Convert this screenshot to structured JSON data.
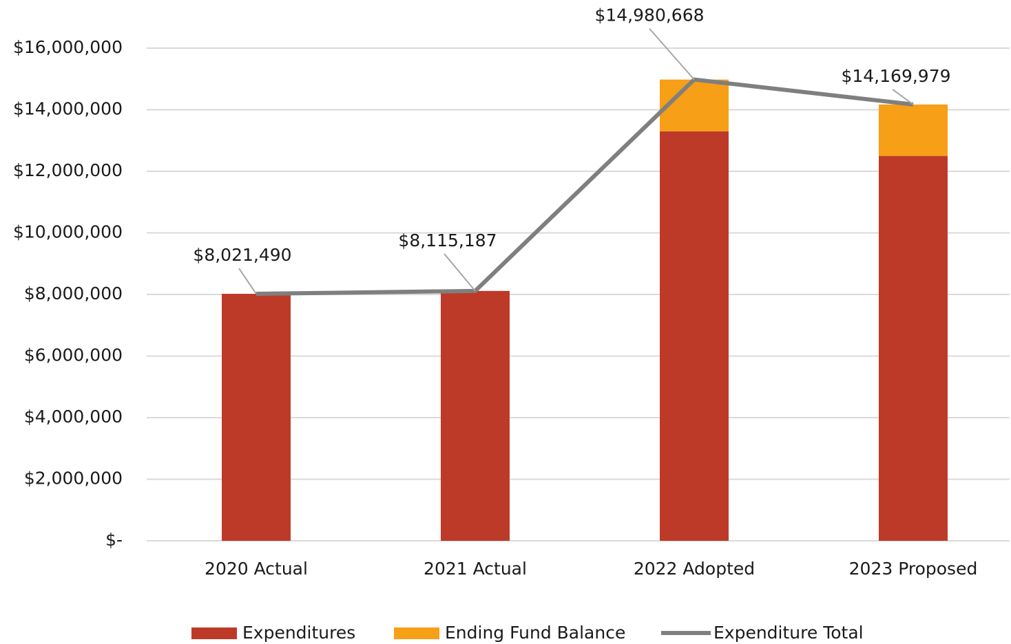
{
  "chart_data": {
    "type": "bar_line",
    "categories": [
      "2020 Actual",
      "2021 Actual",
      "2022 Adopted",
      "2023 Proposed"
    ],
    "series": [
      {
        "name": "Expenditures",
        "color": "#be3a28",
        "type": "bar",
        "values": [
          8021490,
          8115187,
          13300000,
          12500000
        ]
      },
      {
        "name": "Ending Fund Balance",
        "color": "#f79f16",
        "type": "bar",
        "values": [
          0,
          0,
          1680000,
          1670000
        ]
      },
      {
        "name": "Expenditure Total",
        "color": "#7f7f7f",
        "type": "line",
        "values": [
          8021490,
          8115187,
          14980668,
          14169979
        ],
        "value_labels": [
          "$8,021,490",
          "$8,115,187",
          "$14,980,668",
          "$14,169,979"
        ]
      }
    ],
    "stacked": true,
    "ylim": [
      0,
      16000000
    ],
    "yticks": [
      {
        "value": 0,
        "label": "$-"
      },
      {
        "value": 2000000,
        "label": "$2,000,000"
      },
      {
        "value": 4000000,
        "label": "$4,000,000"
      },
      {
        "value": 6000000,
        "label": "$6,000,000"
      },
      {
        "value": 8000000,
        "label": "$8,000,000"
      },
      {
        "value": 10000000,
        "label": "$10,000,000"
      },
      {
        "value": 12000000,
        "label": "$12,000,000"
      },
      {
        "value": 14000000,
        "label": "$14,000,000"
      },
      {
        "value": 16000000,
        "label": "$16,000,000"
      }
    ],
    "grid": true,
    "legend": "bottom"
  }
}
